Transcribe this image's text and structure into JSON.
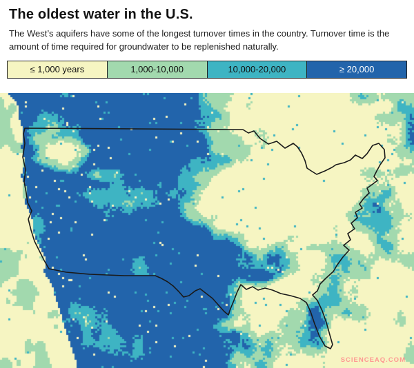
{
  "header": {
    "title": "The oldest water in the U.S.",
    "subtitle": "The West’s aquifers have some of the longest turnover times in the country. Turnover time is the amount of time required for groundwater to be replenished naturally."
  },
  "legend": {
    "items": [
      {
        "label": "≤ 1,000 years",
        "color": "#f6f5c2",
        "text_color": "#111111"
      },
      {
        "label": "1,000-10,000",
        "color": "#a2d9ae",
        "text_color": "#111111"
      },
      {
        "label": "10,000-20,000",
        "color": "#3eb4c3",
        "text_color": "#111111"
      },
      {
        "label": "≥ 20,000",
        "color": "#2264ab",
        "text_color": "#ffffff"
      }
    ]
  },
  "map": {
    "description": "Speckled map of the continental United States showing groundwater turnover time: the West is dominated by ≥ 20,000-year water (dark blue) with teal and green patches, while the East is mostly ≤ 1,000-year water (pale yellow) with 1,000-10,000-year (green) patches.",
    "border_color": "#1a1a1a",
    "colors": {
      "le_1000": "#f6f5c2",
      "k1_10": "#a2d9ae",
      "k10_20": "#3eb4c3",
      "ge_20k": "#2264ab"
    }
  },
  "watermark": "SCIENCEAQ.COM"
}
